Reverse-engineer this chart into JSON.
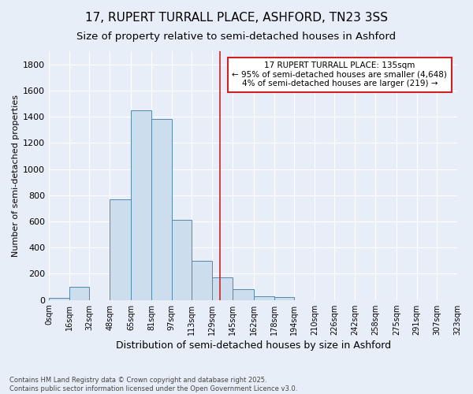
{
  "title": "17, RUPERT TURRALL PLACE, ASHFORD, TN23 3SS",
  "subtitle": "Size of property relative to semi-detached houses in Ashford",
  "xlabel": "Distribution of semi-detached houses by size in Ashford",
  "ylabel": "Number of semi-detached properties",
  "footer_line1": "Contains HM Land Registry data © Crown copyright and database right 2025.",
  "footer_line2": "Contains public sector information licensed under the Open Government Licence v3.0.",
  "bin_labels": [
    "0sqm",
    "16sqm",
    "32sqm",
    "48sqm",
    "65sqm",
    "81sqm",
    "97sqm",
    "113sqm",
    "129sqm",
    "145sqm",
    "162sqm",
    "178sqm",
    "194sqm",
    "210sqm",
    "226sqm",
    "242sqm",
    "258sqm",
    "275sqm",
    "291sqm",
    "307sqm",
    "323sqm"
  ],
  "bin_edges": [
    0,
    16,
    32,
    48,
    65,
    81,
    97,
    113,
    129,
    145,
    162,
    178,
    194,
    210,
    226,
    242,
    258,
    275,
    291,
    307,
    323
  ],
  "bar_values": [
    15,
    100,
    0,
    770,
    1450,
    1380,
    610,
    300,
    170,
    85,
    30,
    20,
    0,
    0,
    0,
    0,
    0,
    0,
    0,
    0
  ],
  "bar_color": "#ccdded",
  "bar_edge_color": "#5588aa",
  "red_line_x": 135,
  "annotation_text": "17 RUPERT TURRALL PLACE: 135sqm\n← 95% of semi-detached houses are smaller (4,648)\n4% of semi-detached houses are larger (219) →",
  "annotation_box_facecolor": "#ffffff",
  "annotation_box_edgecolor": "#cc2222",
  "red_line_color": "#cc2222",
  "ylim": [
    0,
    1900
  ],
  "xlim": [
    0,
    323
  ],
  "background_color": "#e8eef8",
  "grid_color": "#ffffff",
  "title_fontsize": 11,
  "subtitle_fontsize": 9.5,
  "ylabel_fontsize": 8,
  "xlabel_fontsize": 9,
  "ytick_fontsize": 8,
  "xtick_fontsize": 7
}
